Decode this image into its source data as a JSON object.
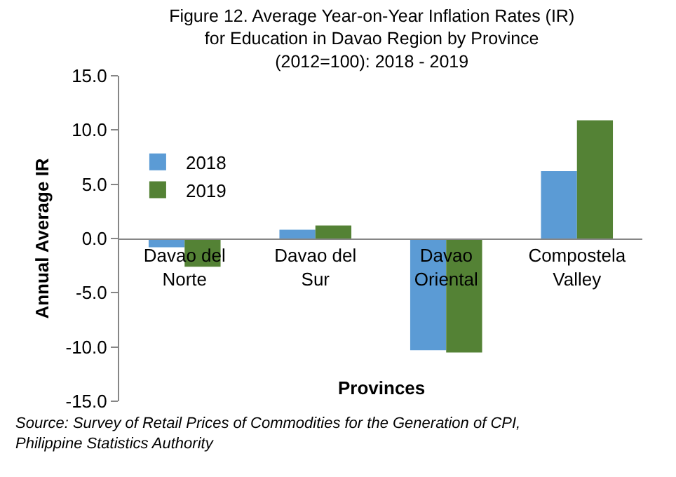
{
  "chart_data": {
    "type": "bar",
    "title": "Figure 12. Average Year-on-Year Inflation Rates (IR)\nfor Education in Davao Region by Province\n(2012=100): 2018 - 2019",
    "xlabel": "Provinces",
    "ylabel": "Annual Average IR",
    "categories": [
      "Davao del Norte",
      "Davao del Sur",
      "Davao Oriental",
      "Compostela Valley"
    ],
    "series": [
      {
        "name": "2018",
        "color": "#5b9bd5",
        "values": [
          -0.8,
          0.8,
          -10.3,
          6.2
        ]
      },
      {
        "name": "2019",
        "color": "#548235",
        "values": [
          -2.6,
          1.2,
          -10.5,
          10.9
        ]
      }
    ],
    "ylim": [
      -15,
      15
    ],
    "yticks": [
      {
        "value": 15,
        "label": "15.0"
      },
      {
        "value": 10,
        "label": "10.0"
      },
      {
        "value": 5,
        "label": "5.0"
      },
      {
        "value": 0,
        "label": "0.0"
      },
      {
        "value": -5,
        "label": "-5.0"
      },
      {
        "value": -10,
        "label": "-10.0"
      },
      {
        "value": -15,
        "label": "-15.0"
      }
    ],
    "grid": false,
    "legend": "top left",
    "annotations": [
      "Source: Survey of Retail Prices of Commodities for the Generation of CPI,\nPhilippine Statistics Authority"
    ]
  }
}
